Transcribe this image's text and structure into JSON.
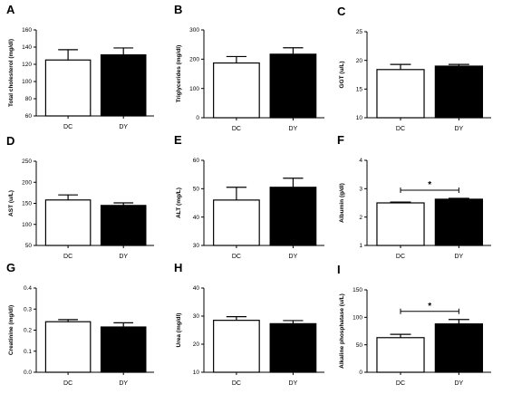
{
  "chart_data": [
    {
      "type": "bar",
      "panel": "A",
      "ylabel": "Total cholesterol (mg/dl)",
      "categories": [
        "DC",
        "DY"
      ],
      "values": [
        125,
        131
      ],
      "errors": [
        12,
        8
      ],
      "ylim": [
        60,
        160
      ],
      "yticks": [
        60,
        80,
        100,
        120,
        140,
        160
      ],
      "significance": null
    },
    {
      "type": "bar",
      "panel": "B",
      "ylabel": "Triglycerides (mg/dl)",
      "categories": [
        "DC",
        "DY"
      ],
      "values": [
        187,
        217
      ],
      "errors": [
        22,
        22
      ],
      "ylim": [
        0,
        300
      ],
      "yticks": [
        0,
        100,
        200,
        300
      ],
      "significance": null
    },
    {
      "type": "bar",
      "panel": "C",
      "ylabel": "GGT (u/L)",
      "categories": [
        "DC",
        "DY"
      ],
      "values": [
        18.4,
        19.0
      ],
      "errors": [
        0.9,
        0.3
      ],
      "ylim": [
        10,
        25
      ],
      "yticks": [
        10,
        15,
        20,
        25
      ],
      "significance": null
    },
    {
      "type": "bar",
      "panel": "D",
      "ylabel": "AST (u/L)",
      "categories": [
        "DC",
        "DY"
      ],
      "values": [
        158,
        145
      ],
      "errors": [
        12,
        6
      ],
      "ylim": [
        50,
        250
      ],
      "yticks": [
        50,
        100,
        150,
        200,
        250
      ],
      "significance": null
    },
    {
      "type": "bar",
      "panel": "E",
      "ylabel": "ALT (mg/L)",
      "categories": [
        "DC",
        "DY"
      ],
      "values": [
        46,
        50.5
      ],
      "errors": [
        4.5,
        3.2
      ],
      "ylim": [
        30,
        60
      ],
      "yticks": [
        30,
        40,
        50,
        60
      ],
      "significance": null
    },
    {
      "type": "bar",
      "panel": "F",
      "ylabel": "Albumin (g/dl)",
      "categories": [
        "DC",
        "DY"
      ],
      "values": [
        2.5,
        2.63
      ],
      "errors": [
        0.03,
        0.03
      ],
      "ylim": [
        1,
        4
      ],
      "yticks": [
        1,
        2,
        3,
        4
      ],
      "significance": "*"
    },
    {
      "type": "bar",
      "panel": "G",
      "ylabel": "Creatinine (mg/dl)",
      "categories": [
        "DC",
        "DY"
      ],
      "values": [
        0.24,
        0.215
      ],
      "errors": [
        0.01,
        0.02
      ],
      "ylim": [
        0.0,
        0.4
      ],
      "yticks": [
        0.0,
        0.1,
        0.2,
        0.3,
        0.4
      ],
      "significance": null
    },
    {
      "type": "bar",
      "panel": "H",
      "ylabel": "Urea (mg/dl)",
      "categories": [
        "DC",
        "DY"
      ],
      "values": [
        28.5,
        27.3
      ],
      "errors": [
        1.3,
        1.1
      ],
      "ylim": [
        10,
        40
      ],
      "yticks": [
        10,
        20,
        30,
        40
      ],
      "significance": null
    },
    {
      "type": "bar",
      "panel": "I",
      "ylabel": "Alkaline phosphatase (u/L)",
      "categories": [
        "DC",
        "DY"
      ],
      "values": [
        63,
        88
      ],
      "errors": [
        6,
        8
      ],
      "ylim": [
        0,
        150
      ],
      "yticks": [
        0,
        50,
        100,
        150
      ],
      "significance": "*"
    }
  ],
  "colors": {
    "DC": "#ffffff",
    "DY": "#000000"
  }
}
